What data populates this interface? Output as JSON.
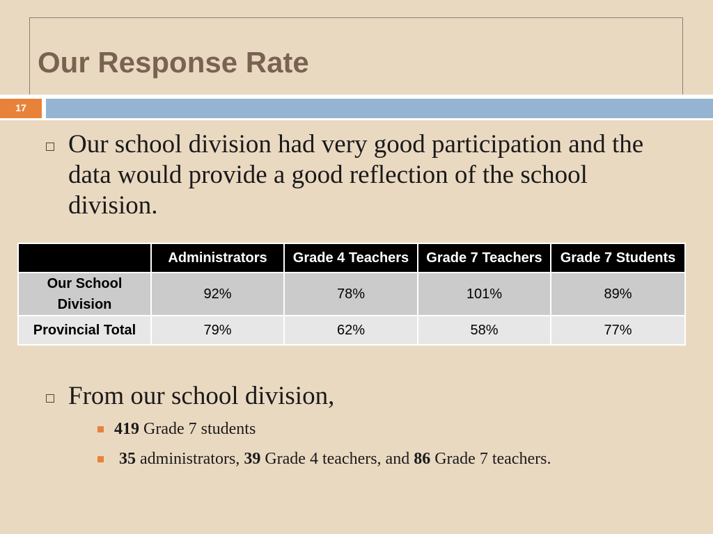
{
  "slide": {
    "title": "Our Response Rate",
    "number": "17"
  },
  "bullets": {
    "participation": "Our school division had very good participation and the data would provide a good reflection of the school division.",
    "from_division": "From our school division,"
  },
  "table": {
    "headers": [
      "",
      "Administrators",
      "Grade 4 Teachers",
      "Grade 7 Teachers",
      "Grade 7 Students"
    ],
    "rows": [
      {
        "label": "Our School Division",
        "values": [
          "92%",
          "78%",
          "101%",
          "89%"
        ]
      },
      {
        "label": "Provincial Total",
        "values": [
          "79%",
          "62%",
          "58%",
          "77%"
        ]
      }
    ]
  },
  "sub_bullets": {
    "students": {
      "count": "419",
      "text": "Grade 7 students"
    },
    "staff": {
      "admin_count": "35",
      "admin_text": "administrators,",
      "g4_count": "39",
      "g4_text": "Grade 4 teachers, and",
      "g7_count": "86",
      "g7_text": "Grade 7 teachers."
    }
  },
  "colors": {
    "background": "#ead9c1",
    "title": "#7a6252",
    "accent_orange": "#e8823a",
    "accent_blue": "#94b4d2",
    "table_header": "#000000",
    "row_1": "#cbcbcb",
    "row_2": "#e7e7e7"
  }
}
